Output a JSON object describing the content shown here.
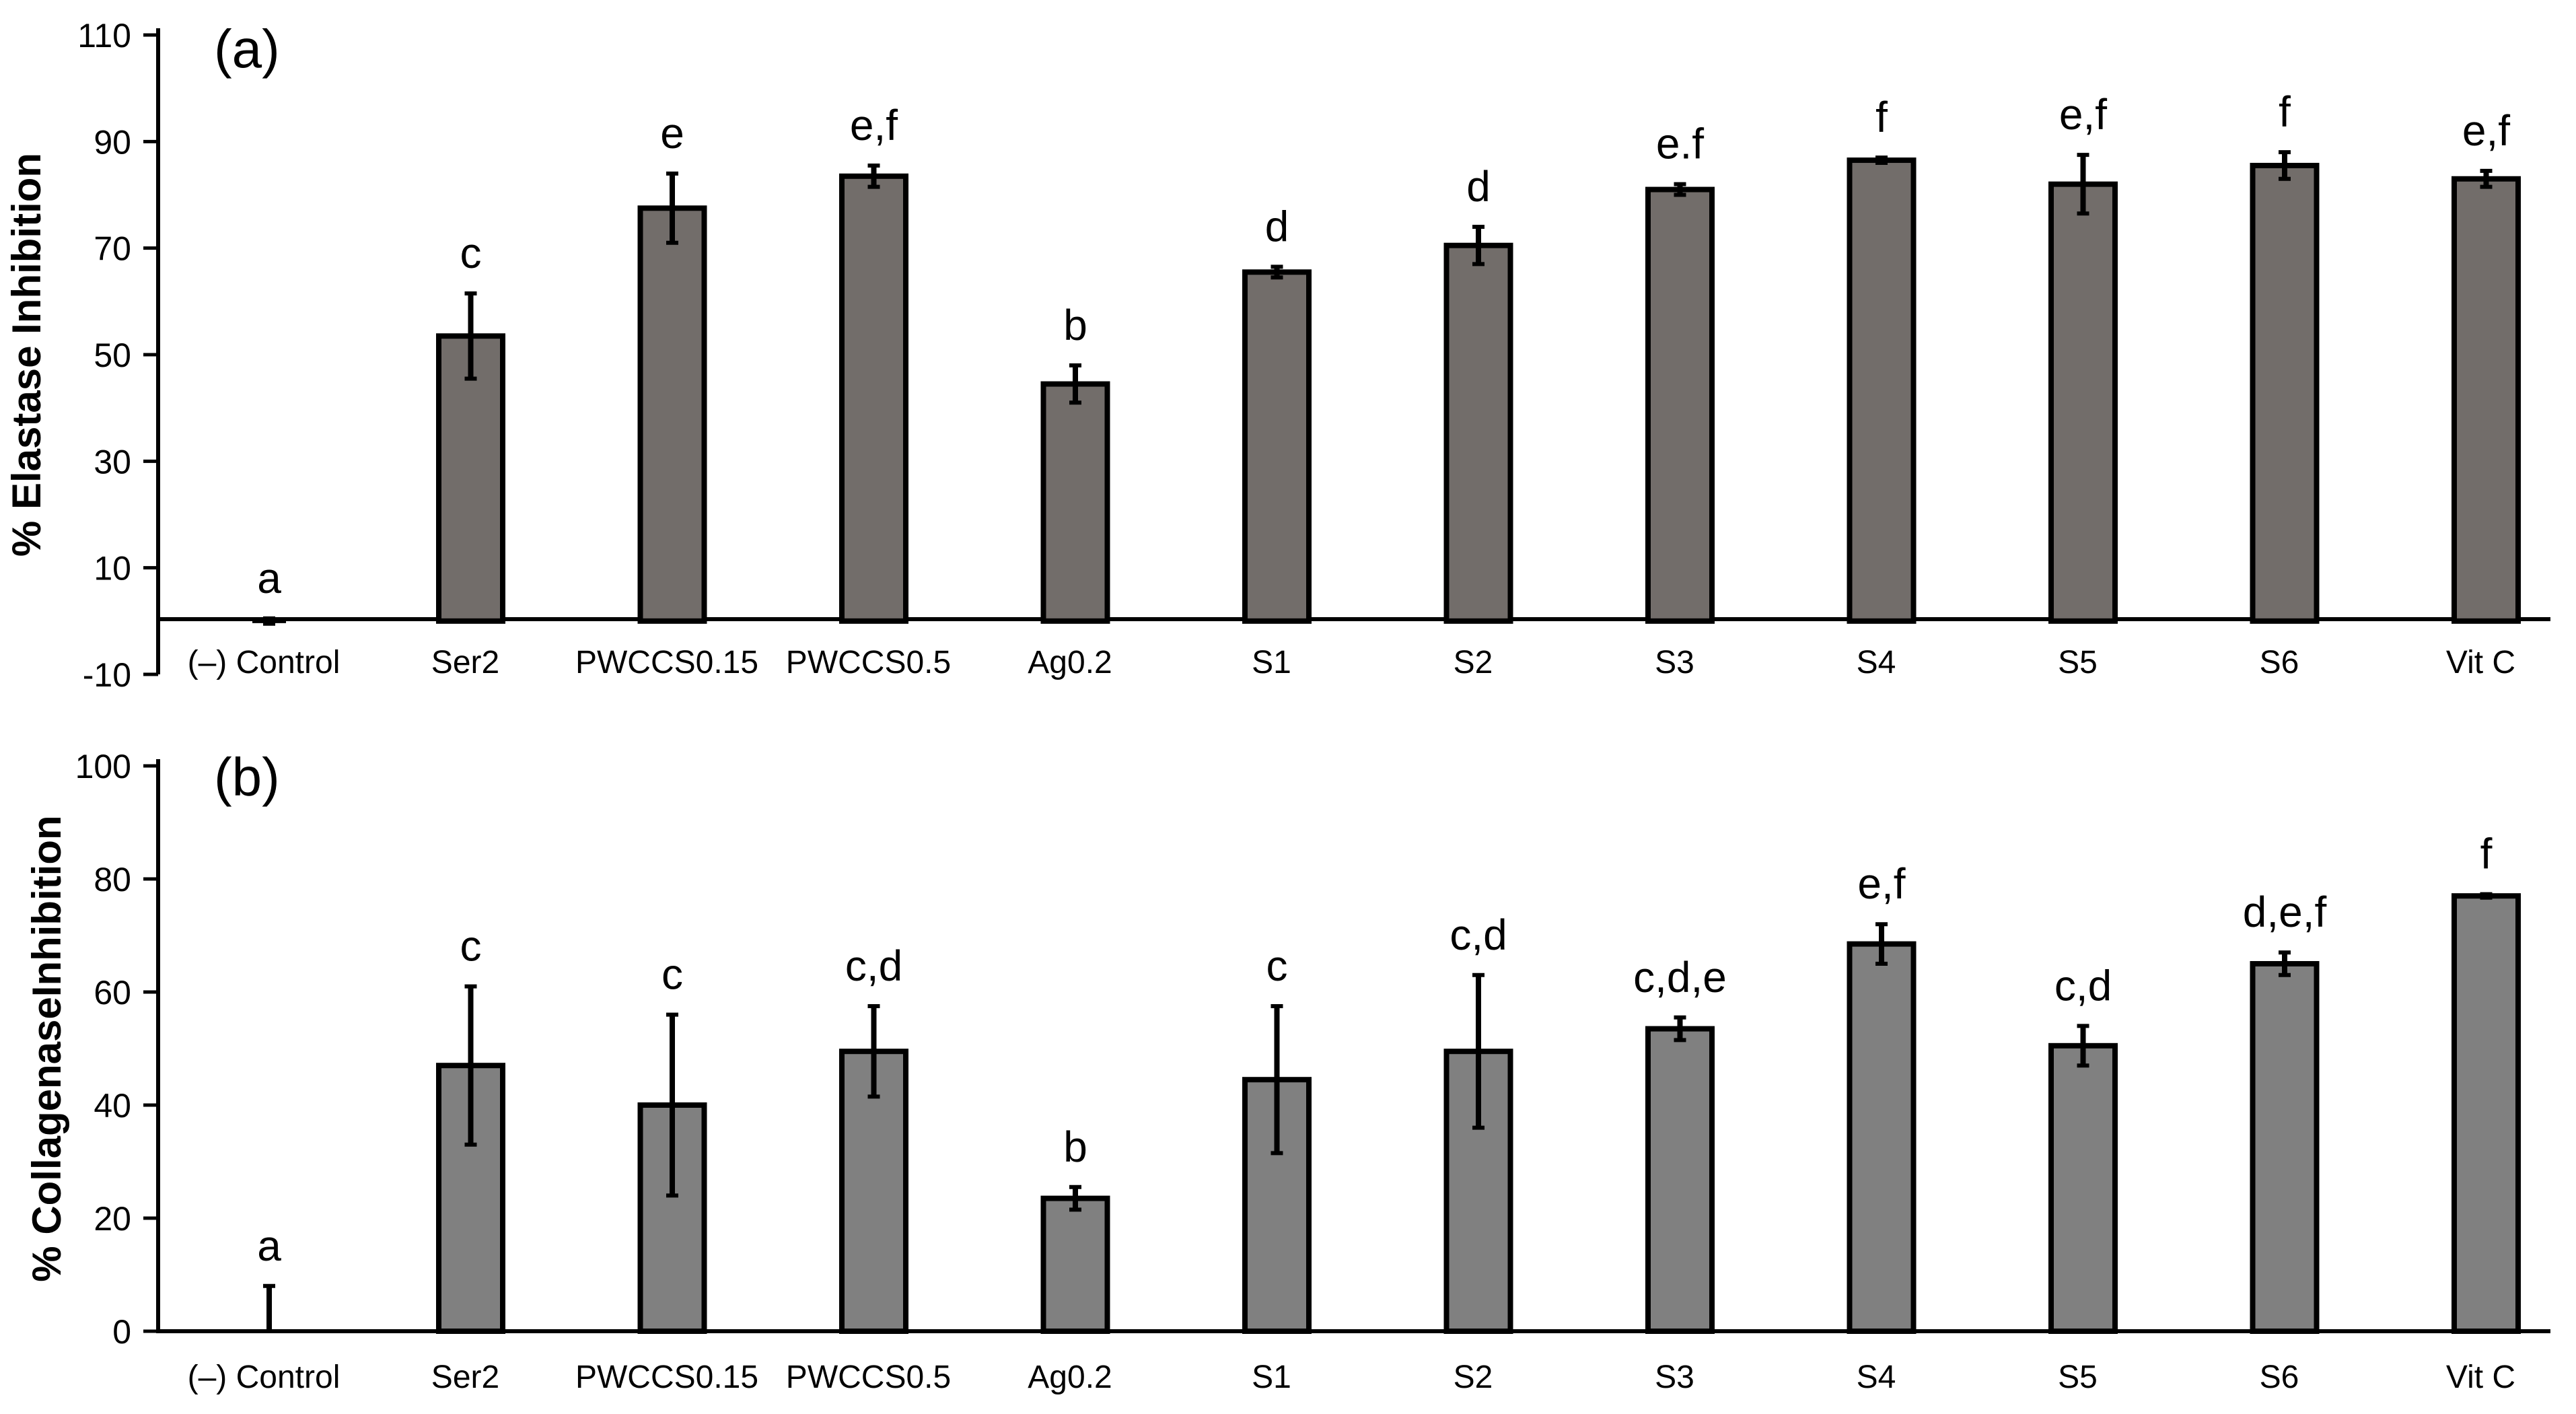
{
  "chart_data": [
    {
      "type": "bar",
      "panel_label": "(a)",
      "ylabel": "% Elastase Inhibition",
      "ylim": [
        -10,
        110
      ],
      "yticks": [
        -10,
        10,
        30,
        50,
        70,
        90,
        110
      ],
      "categories": [
        "(–) Control",
        "Ser2",
        "PWCCS0.15",
        "PWCCS0.5",
        "Ag0.2",
        "S1",
        "S2",
        "S3",
        "S4",
        "S5",
        "S6",
        "Vit C"
      ],
      "values": [
        0,
        53.5,
        77.5,
        83.5,
        44.5,
        65.5,
        70.5,
        81,
        86.5,
        82,
        85.5,
        83
      ],
      "errors": [
        0.5,
        8,
        6.5,
        2,
        3.5,
        1,
        3.5,
        1,
        0.5,
        5.5,
        2.5,
        1.5
      ],
      "significance": [
        "a",
        "c",
        "e",
        "e,f",
        "b",
        "d",
        "d",
        "e.f",
        "f",
        "e,f",
        "f",
        "e,f"
      ],
      "bar_color": "#726d6a",
      "grid": false
    },
    {
      "type": "bar",
      "panel_label": "(b)",
      "ylabel": "%  CollagenaseInhibition",
      "ylim": [
        0,
        100
      ],
      "yticks": [
        0,
        20,
        40,
        60,
        80,
        100
      ],
      "categories": [
        "(–) Control",
        "Ser2",
        "PWCCS0.15",
        "PWCCS0.5",
        "Ag0.2",
        "S1",
        "S2",
        "S3",
        "S4",
        "S5",
        "S6",
        "Vit C"
      ],
      "values": [
        0,
        47,
        40,
        49.5,
        23.5,
        44.5,
        49.5,
        53.5,
        68.5,
        50.5,
        65,
        77
      ],
      "errors": [
        8,
        14,
        16,
        8,
        2,
        13,
        13.5,
        2,
        3.5,
        3.5,
        2,
        0.3
      ],
      "significance": [
        "a",
        "c",
        "c",
        "c,d",
        "b",
        "c",
        "c,d",
        "c,d,e",
        "e,f",
        "c,d",
        "d,e,f",
        "f"
      ],
      "bar_color": "#808080",
      "grid": false
    }
  ]
}
